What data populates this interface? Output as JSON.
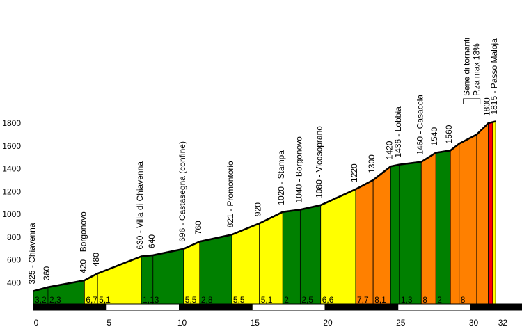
{
  "chart_data": {
    "type": "area",
    "title": "",
    "xlabel": "",
    "ylabel": "",
    "xlim": [
      0,
      32
    ],
    "ylim": [
      200,
      1800
    ],
    "yticks": [
      "400",
      "600",
      "800",
      "1000",
      "1200",
      "1400",
      "1600",
      "1800"
    ],
    "xticks": [
      {
        "value": 0,
        "label": "0"
      },
      {
        "value": 5,
        "label": "5"
      },
      {
        "value": 10,
        "label": "10"
      },
      {
        "value": 15,
        "label": "15"
      },
      {
        "value": 20,
        "label": "20"
      },
      {
        "value": 25,
        "label": "25"
      },
      {
        "value": 30,
        "label": "30"
      },
      {
        "value": 32,
        "label": "32"
      }
    ],
    "profile": [
      {
        "km": 0.0,
        "alt": 325
      },
      {
        "km": 1.0,
        "alt": 360
      },
      {
        "km": 3.5,
        "alt": 420
      },
      {
        "km": 4.4,
        "alt": 480
      },
      {
        "km": 7.4,
        "alt": 630
      },
      {
        "km": 8.2,
        "alt": 640
      },
      {
        "km": 10.3,
        "alt": 696
      },
      {
        "km": 11.4,
        "alt": 760
      },
      {
        "km": 13.6,
        "alt": 821
      },
      {
        "km": 15.5,
        "alt": 920
      },
      {
        "km": 17.1,
        "alt": 1020
      },
      {
        "km": 18.3,
        "alt": 1040
      },
      {
        "km": 19.7,
        "alt": 1080
      },
      {
        "km": 22.1,
        "alt": 1220
      },
      {
        "km": 23.3,
        "alt": 1300
      },
      {
        "km": 24.5,
        "alt": 1420
      },
      {
        "km": 25.1,
        "alt": 1436
      },
      {
        "km": 26.6,
        "alt": 1460
      },
      {
        "km": 27.6,
        "alt": 1540
      },
      {
        "km": 28.6,
        "alt": 1560
      },
      {
        "km": 29.2,
        "alt": 1620
      },
      {
        "km": 30.4,
        "alt": 1700
      },
      {
        "km": 31.2,
        "alt": 1800
      },
      {
        "km": 31.7,
        "alt": 1815
      }
    ],
    "segments": [
      {
        "from": 0.0,
        "to": 1.0,
        "grade": "3,2",
        "color": "#008000"
      },
      {
        "from": 1.0,
        "to": 3.5,
        "grade": "2,3",
        "color": "#008000"
      },
      {
        "from": 3.5,
        "to": 4.4,
        "grade": "6,7",
        "color": "#ffff00"
      },
      {
        "from": 4.4,
        "to": 7.4,
        "grade": "5,1",
        "color": "#ffff00"
      },
      {
        "from": 7.4,
        "to": 8.2,
        "grade": "1,1",
        "color": "#008000"
      },
      {
        "from": 8.2,
        "to": 10.3,
        "grade": "3",
        "color": "#008000"
      },
      {
        "from": 10.3,
        "to": 11.4,
        "grade": "5,5",
        "color": "#ffff00"
      },
      {
        "from": 11.4,
        "to": 13.6,
        "grade": "2,8",
        "color": "#008000"
      },
      {
        "from": 13.6,
        "to": 15.5,
        "grade": "5,5",
        "color": "#ffff00"
      },
      {
        "from": 15.5,
        "to": 17.1,
        "grade": "5,1",
        "color": "#ffff00"
      },
      {
        "from": 17.1,
        "to": 18.3,
        "grade": "2",
        "color": "#008000"
      },
      {
        "from": 18.3,
        "to": 19.7,
        "grade": "2,5",
        "color": "#008000"
      },
      {
        "from": 19.7,
        "to": 22.1,
        "grade": "6,6",
        "color": "#ffff00"
      },
      {
        "from": 22.1,
        "to": 23.3,
        "grade": "7,7",
        "color": "#ff8000"
      },
      {
        "from": 23.3,
        "to": 24.5,
        "grade": "8,1",
        "color": "#ff8000"
      },
      {
        "from": 24.5,
        "to": 25.1,
        "grade": "",
        "color": "#008000"
      },
      {
        "from": 25.1,
        "to": 26.6,
        "grade": "1,3",
        "color": "#008000"
      },
      {
        "from": 26.6,
        "to": 27.6,
        "grade": "8",
        "color": "#ff8000"
      },
      {
        "from": 27.6,
        "to": 28.6,
        "grade": "2",
        "color": "#008000"
      },
      {
        "from": 28.6,
        "to": 29.2,
        "grade": "",
        "color": "#ff8000"
      },
      {
        "from": 29.2,
        "to": 30.4,
        "grade": "8",
        "color": "#ff8000"
      },
      {
        "from": 30.4,
        "to": 31.2,
        "grade": "",
        "color": "#ff8000"
      },
      {
        "from": 31.2,
        "to": 31.5,
        "grade": "",
        "color": "#ff0000"
      },
      {
        "from": 31.5,
        "to": 31.7,
        "grade": "",
        "color": "#ffff00"
      }
    ],
    "waypoints": [
      {
        "km": 0.0,
        "alt": 325,
        "label": "325 - Chiavenna"
      },
      {
        "km": 1.0,
        "alt": 360,
        "label": "360"
      },
      {
        "km": 3.5,
        "alt": 420,
        "label": "420 - Borgonovo"
      },
      {
        "km": 4.4,
        "alt": 480,
        "label": "480"
      },
      {
        "km": 7.4,
        "alt": 630,
        "label": "630 - Villa di Chiavenna"
      },
      {
        "km": 8.2,
        "alt": 640,
        "label": "640"
      },
      {
        "km": 10.3,
        "alt": 696,
        "label": "696 - Castasegna (confine)"
      },
      {
        "km": 11.4,
        "alt": 760,
        "label": "760"
      },
      {
        "km": 13.6,
        "alt": 821,
        "label": "821 - Promontorio"
      },
      {
        "km": 15.5,
        "alt": 920,
        "label": "920"
      },
      {
        "km": 17.1,
        "alt": 1020,
        "label": "1020 - Stampa"
      },
      {
        "km": 18.3,
        "alt": 1040,
        "label": "1040 - Borgonovo"
      },
      {
        "km": 19.7,
        "alt": 1080,
        "label": "1080 - Vicosoprano"
      },
      {
        "km": 22.1,
        "alt": 1220,
        "label": "1220"
      },
      {
        "km": 23.3,
        "alt": 1300,
        "label": "1300"
      },
      {
        "km": 24.5,
        "alt": 1420,
        "label": "1420"
      },
      {
        "km": 25.1,
        "alt": 1436,
        "label": "1436 - Lobbia"
      },
      {
        "km": 26.6,
        "alt": 1460,
        "label": "1460 - Casaccia"
      },
      {
        "km": 27.6,
        "alt": 1540,
        "label": "1540"
      },
      {
        "km": 28.6,
        "alt": 1560,
        "label": "1560"
      },
      {
        "km": 31.2,
        "alt": 1800,
        "label": "1800"
      },
      {
        "km": 31.7,
        "alt": 1815,
        "label": "1815 - Passo Maloja"
      }
    ],
    "annotations": [
      {
        "line1": "Serie di tornanti",
        "line2": "P.za max 13%",
        "from": 29.2,
        "to": 31.2
      }
    ],
    "scale_bar": {
      "from": 0,
      "to": 32,
      "step": 5,
      "colors": [
        "#000000",
        "#ffffff"
      ]
    }
  }
}
